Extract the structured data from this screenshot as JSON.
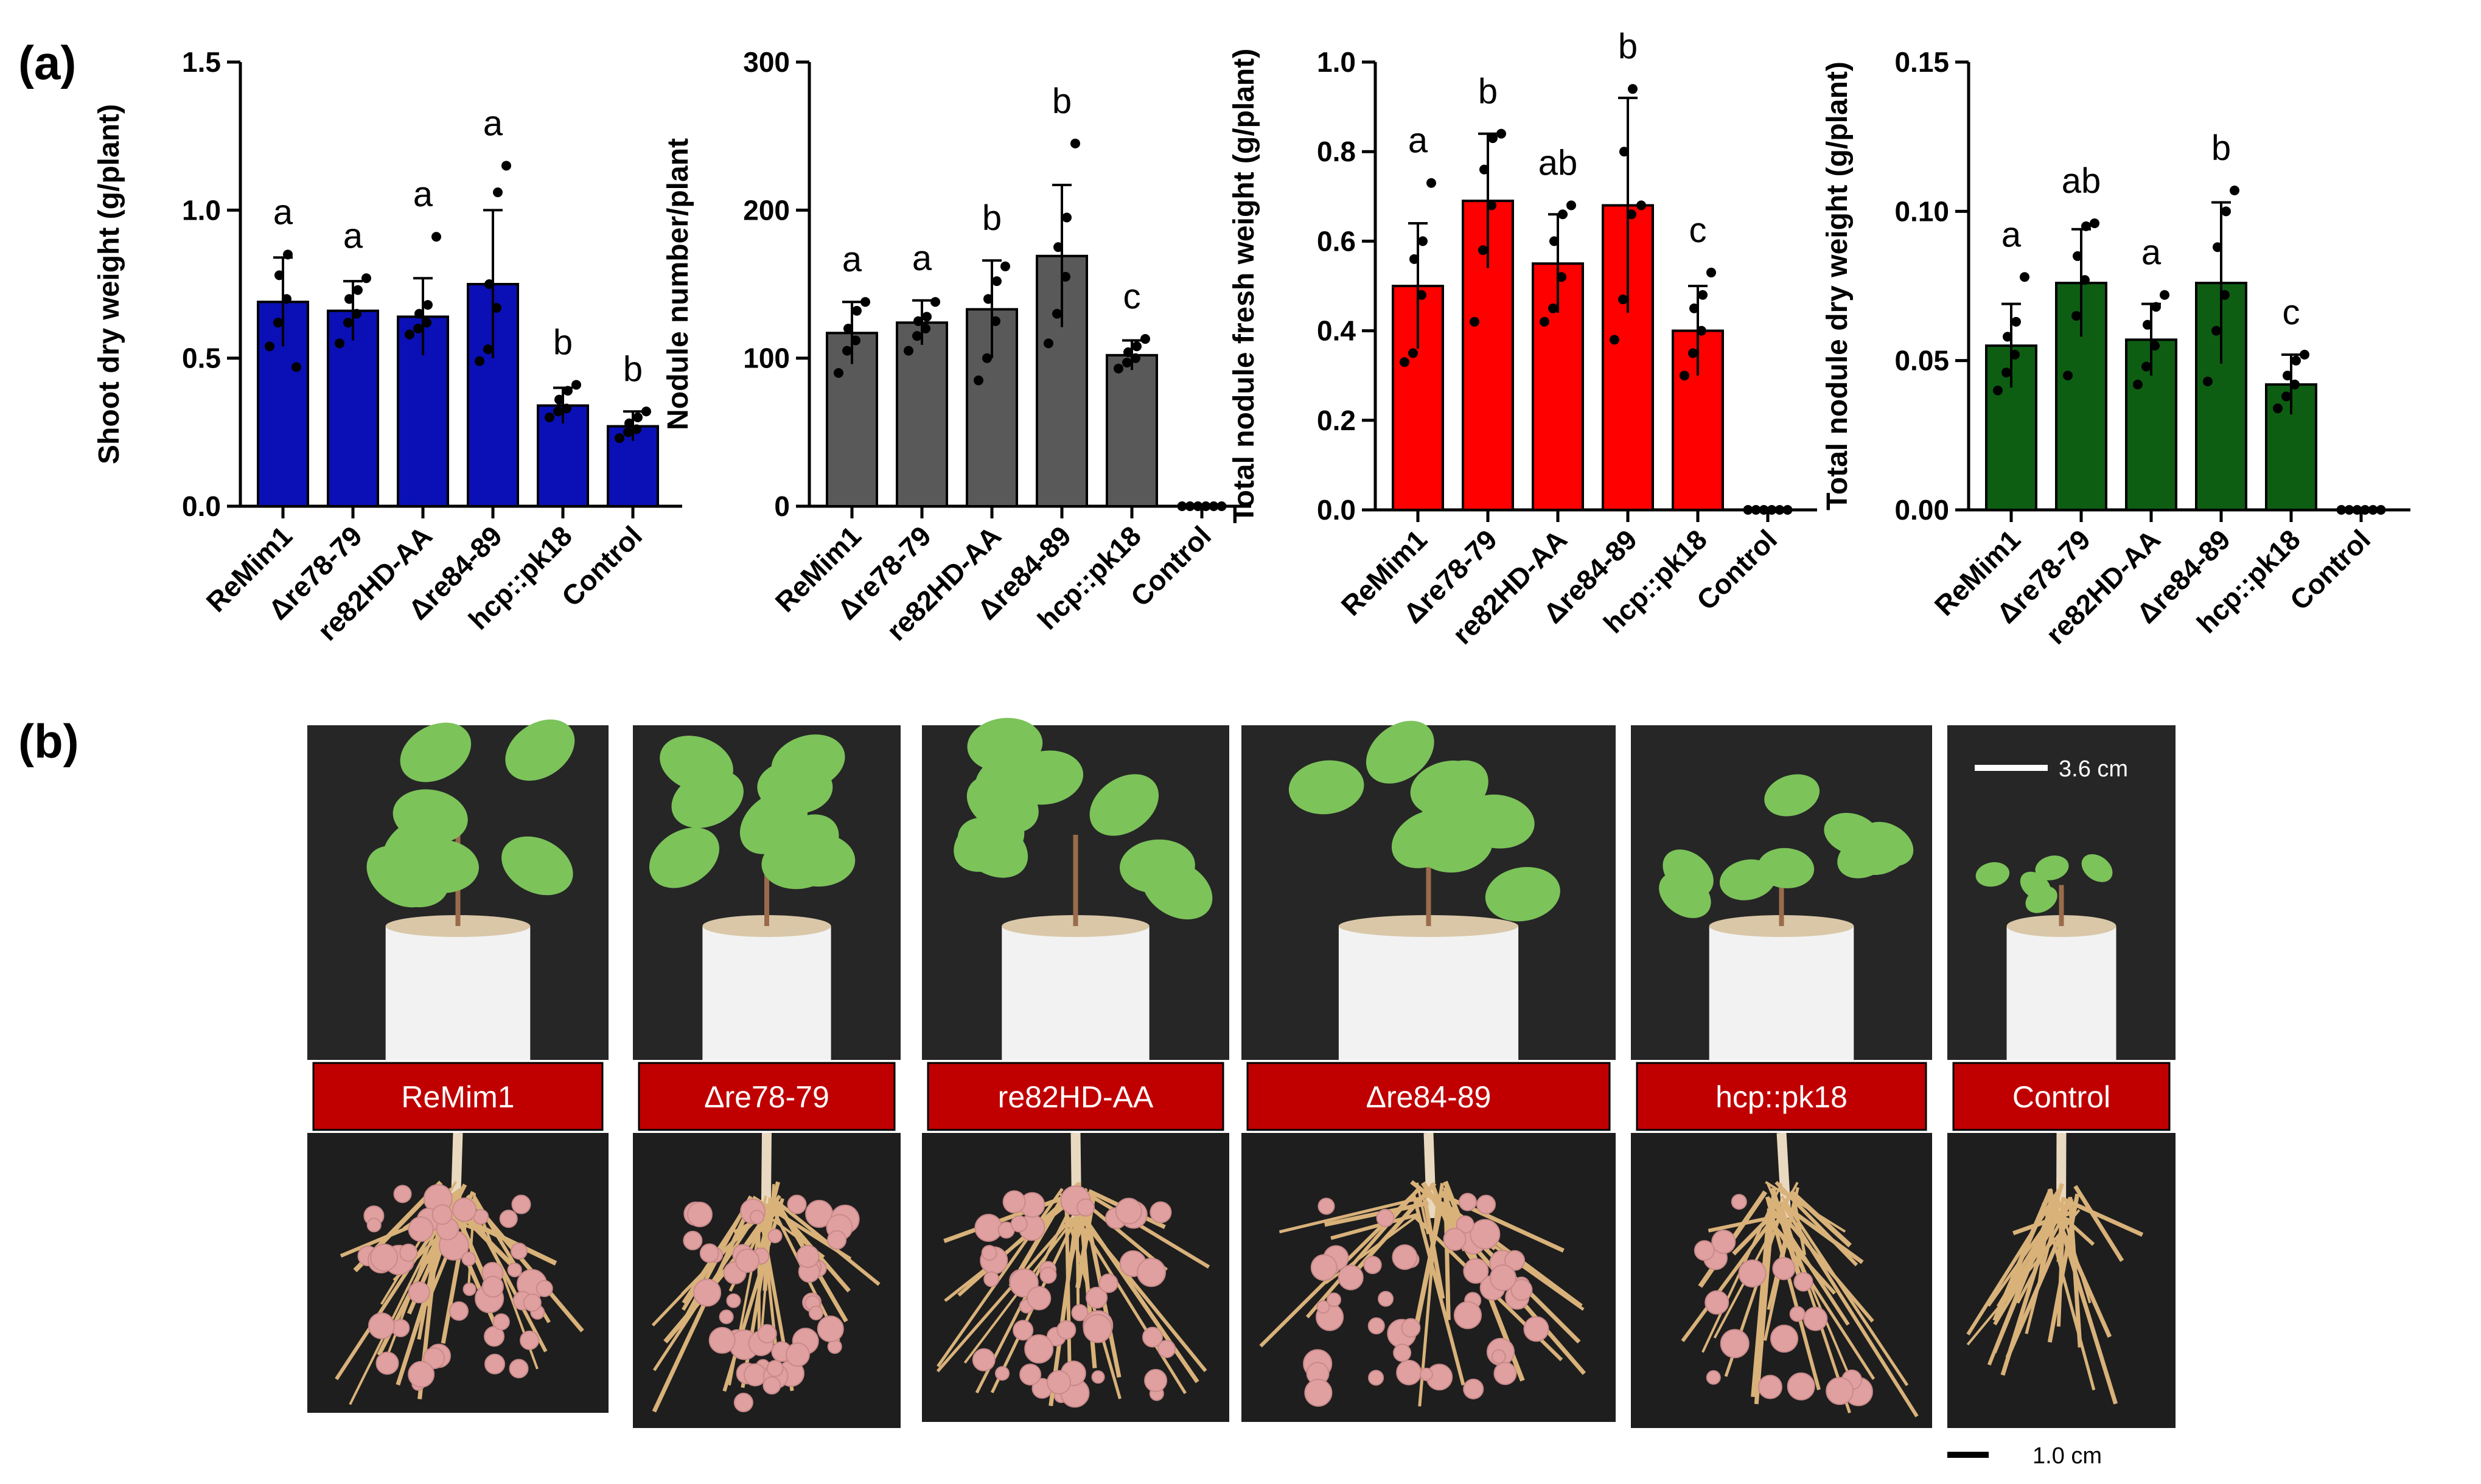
{
  "panels": {
    "a": "(a)",
    "b": "(b)"
  },
  "chart_data": [
    {
      "type": "bar",
      "color": "#0a10b5",
      "categories": [
        "ReMim1",
        "Δre78-79",
        "re82HD-AA",
        "Δre84-89",
        "hcp::pk18",
        "Control"
      ],
      "values": [
        0.69,
        0.66,
        0.64,
        0.75,
        0.34,
        0.27
      ],
      "errors": [
        0.15,
        0.1,
        0.13,
        0.25,
        0.06,
        0.05
      ],
      "points": [
        [
          0.54,
          0.62,
          0.7,
          0.78,
          0.85,
          0.47
        ],
        [
          0.55,
          0.62,
          0.65,
          0.7,
          0.73,
          0.77
        ],
        [
          0.58,
          0.6,
          0.62,
          0.65,
          0.68,
          0.91
        ],
        [
          0.49,
          0.53,
          0.67,
          0.75,
          1.06,
          1.15
        ],
        [
          0.3,
          0.32,
          0.33,
          0.36,
          0.39,
          0.41
        ],
        [
          0.23,
          0.25,
          0.26,
          0.28,
          0.3,
          0.32
        ]
      ],
      "letters": [
        "a",
        "a",
        "a",
        "a",
        "b",
        "b"
      ],
      "ylabel": "Shoot dry weight (g/plant)",
      "ylim": [
        0,
        1.5
      ],
      "yticks": [
        "0.0",
        "0.5",
        "1.0",
        "1.5"
      ],
      "yticks_values": [
        0,
        0.5,
        1.0,
        1.5
      ]
    },
    {
      "type": "bar",
      "color": "#595959",
      "categories": [
        "ReMim1",
        "Δre78-79",
        "re82HD-AA",
        "Δre84-89",
        "hcp::pk18",
        "Control"
      ],
      "values": [
        117,
        124,
        133,
        169,
        102,
        0
      ],
      "errors": [
        21,
        15,
        33,
        48,
        10,
        0
      ],
      "points": [
        [
          90,
          105,
          112,
          120,
          132,
          138
        ],
        [
          105,
          115,
          120,
          125,
          128,
          138
        ],
        [
          85,
          100,
          125,
          140,
          152,
          162
        ],
        [
          110,
          130,
          155,
          175,
          195,
          245
        ],
        [
          93,
          97,
          100,
          104,
          108,
          113
        ],
        [
          0,
          0,
          0,
          0,
          0,
          0
        ]
      ],
      "letters": [
        "a",
        "a",
        "b",
        "b",
        "c",
        ""
      ],
      "ylabel": "Nodule number/plant",
      "ylim": [
        0,
        300
      ],
      "yticks": [
        "0",
        "100",
        "200",
        "300"
      ],
      "yticks_values": [
        0,
        100,
        200,
        300
      ]
    },
    {
      "type": "bar",
      "color": "#ff0000",
      "categories": [
        "ReMim1",
        "Δre78-79",
        "re82HD-AA",
        "Δre84-89",
        "hcp::pk18",
        "Control"
      ],
      "values": [
        0.5,
        0.69,
        0.55,
        0.68,
        0.4,
        0.0
      ],
      "errors": [
        0.14,
        0.15,
        0.11,
        0.24,
        0.1,
        0.0
      ],
      "points": [
        [
          0.33,
          0.35,
          0.48,
          0.56,
          0.6,
          0.73
        ],
        [
          0.42,
          0.58,
          0.68,
          0.76,
          0.83,
          0.84
        ],
        [
          0.42,
          0.45,
          0.52,
          0.6,
          0.66,
          0.68
        ],
        [
          0.38,
          0.47,
          0.66,
          0.8,
          0.94,
          0.68
        ],
        [
          0.3,
          0.35,
          0.4,
          0.45,
          0.48,
          0.53
        ],
        [
          0,
          0,
          0,
          0,
          0,
          0
        ]
      ],
      "letters": [
        "a",
        "b",
        "ab",
        "b",
        "c",
        ""
      ],
      "ylabel": "Total nodule fresh weight (g/plant)",
      "ylim": [
        0,
        1.0
      ],
      "yticks": [
        "0.0",
        "0.2",
        "0.4",
        "0.6",
        "0.8",
        "1.0"
      ],
      "yticks_values": [
        0,
        0.2,
        0.4,
        0.6,
        0.8,
        1.0
      ]
    },
    {
      "type": "bar",
      "color": "#0d5e12",
      "categories": [
        "ReMim1",
        "Δre78-79",
        "re82HD-AA",
        "Δre84-89",
        "hcp::pk18",
        "Control"
      ],
      "values": [
        0.055,
        0.076,
        0.057,
        0.076,
        0.042,
        0.0
      ],
      "errors": [
        0.014,
        0.018,
        0.012,
        0.027,
        0.01,
        0.0
      ],
      "points": [
        [
          0.04,
          0.046,
          0.052,
          0.058,
          0.063,
          0.078
        ],
        [
          0.045,
          0.065,
          0.077,
          0.085,
          0.095,
          0.096
        ],
        [
          0.042,
          0.048,
          0.055,
          0.062,
          0.068,
          0.072
        ],
        [
          0.043,
          0.06,
          0.072,
          0.088,
          0.1,
          0.107
        ],
        [
          0.034,
          0.038,
          0.042,
          0.045,
          0.05,
          0.052
        ],
        [
          0,
          0,
          0,
          0,
          0,
          0
        ]
      ],
      "letters": [
        "a",
        "ab",
        "a",
        "b",
        "c",
        ""
      ],
      "ylabel": "Total nodule dry weight (g/plant)",
      "ylim": [
        0,
        0.15
      ],
      "yticks": [
        "0.00",
        "0.05",
        "0.10",
        "0.15"
      ],
      "yticks_values": [
        0,
        0.05,
        0.1,
        0.15
      ]
    }
  ],
  "photo_labels": [
    "ReMim1",
    "Δre78-79",
    "re82HD-AA",
    "Δre84-89",
    "hcp::pk18",
    "Control"
  ],
  "scale_bars": {
    "top": "3.6 cm",
    "bottom": "1.0 cm"
  },
  "colors": {
    "label_red": "#c00000",
    "photo_bg": "#262626",
    "root": "#d9b27a",
    "nodule": "#e0a0a0",
    "leaf": "#7cc35a"
  }
}
